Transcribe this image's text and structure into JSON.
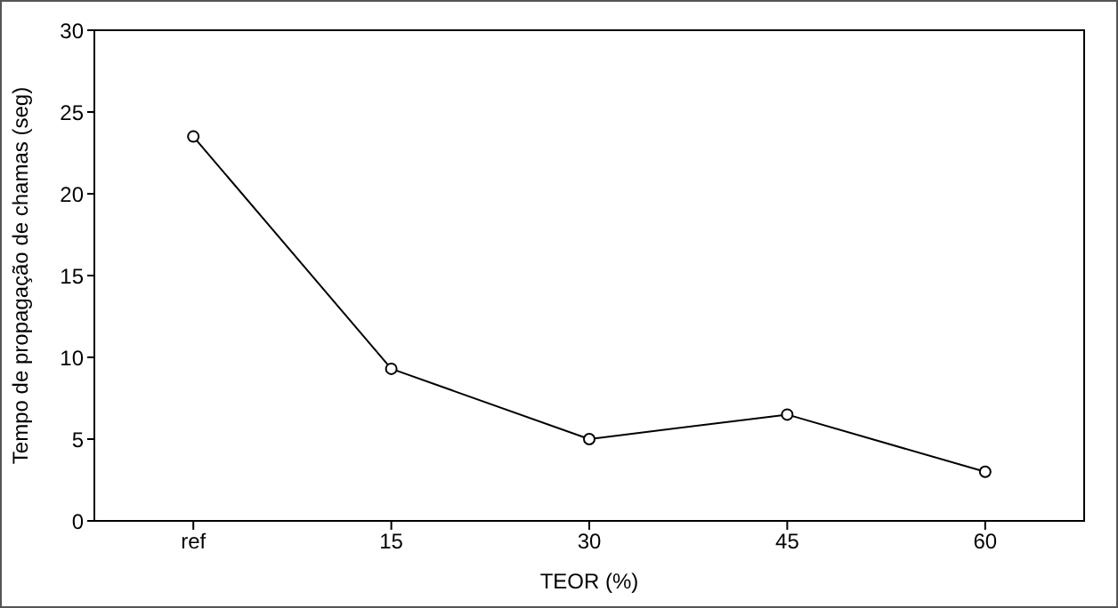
{
  "chart_data": {
    "type": "line",
    "xlabel": "TEOR (%)",
    "ylabel": "Tempo de propagação de chamas (seg)",
    "categories": [
      "ref",
      "15",
      "30",
      "45",
      "60"
    ],
    "series": [
      {
        "color": "#000000",
        "values": [
          23.5,
          9.3,
          5.0,
          6.5,
          3.0
        ]
      }
    ],
    "ylim": [
      0,
      30
    ],
    "yticks": [
      0,
      5,
      10,
      15,
      20,
      25,
      30
    ],
    "grid": false,
    "marker": "circle",
    "line_style": "solid"
  }
}
